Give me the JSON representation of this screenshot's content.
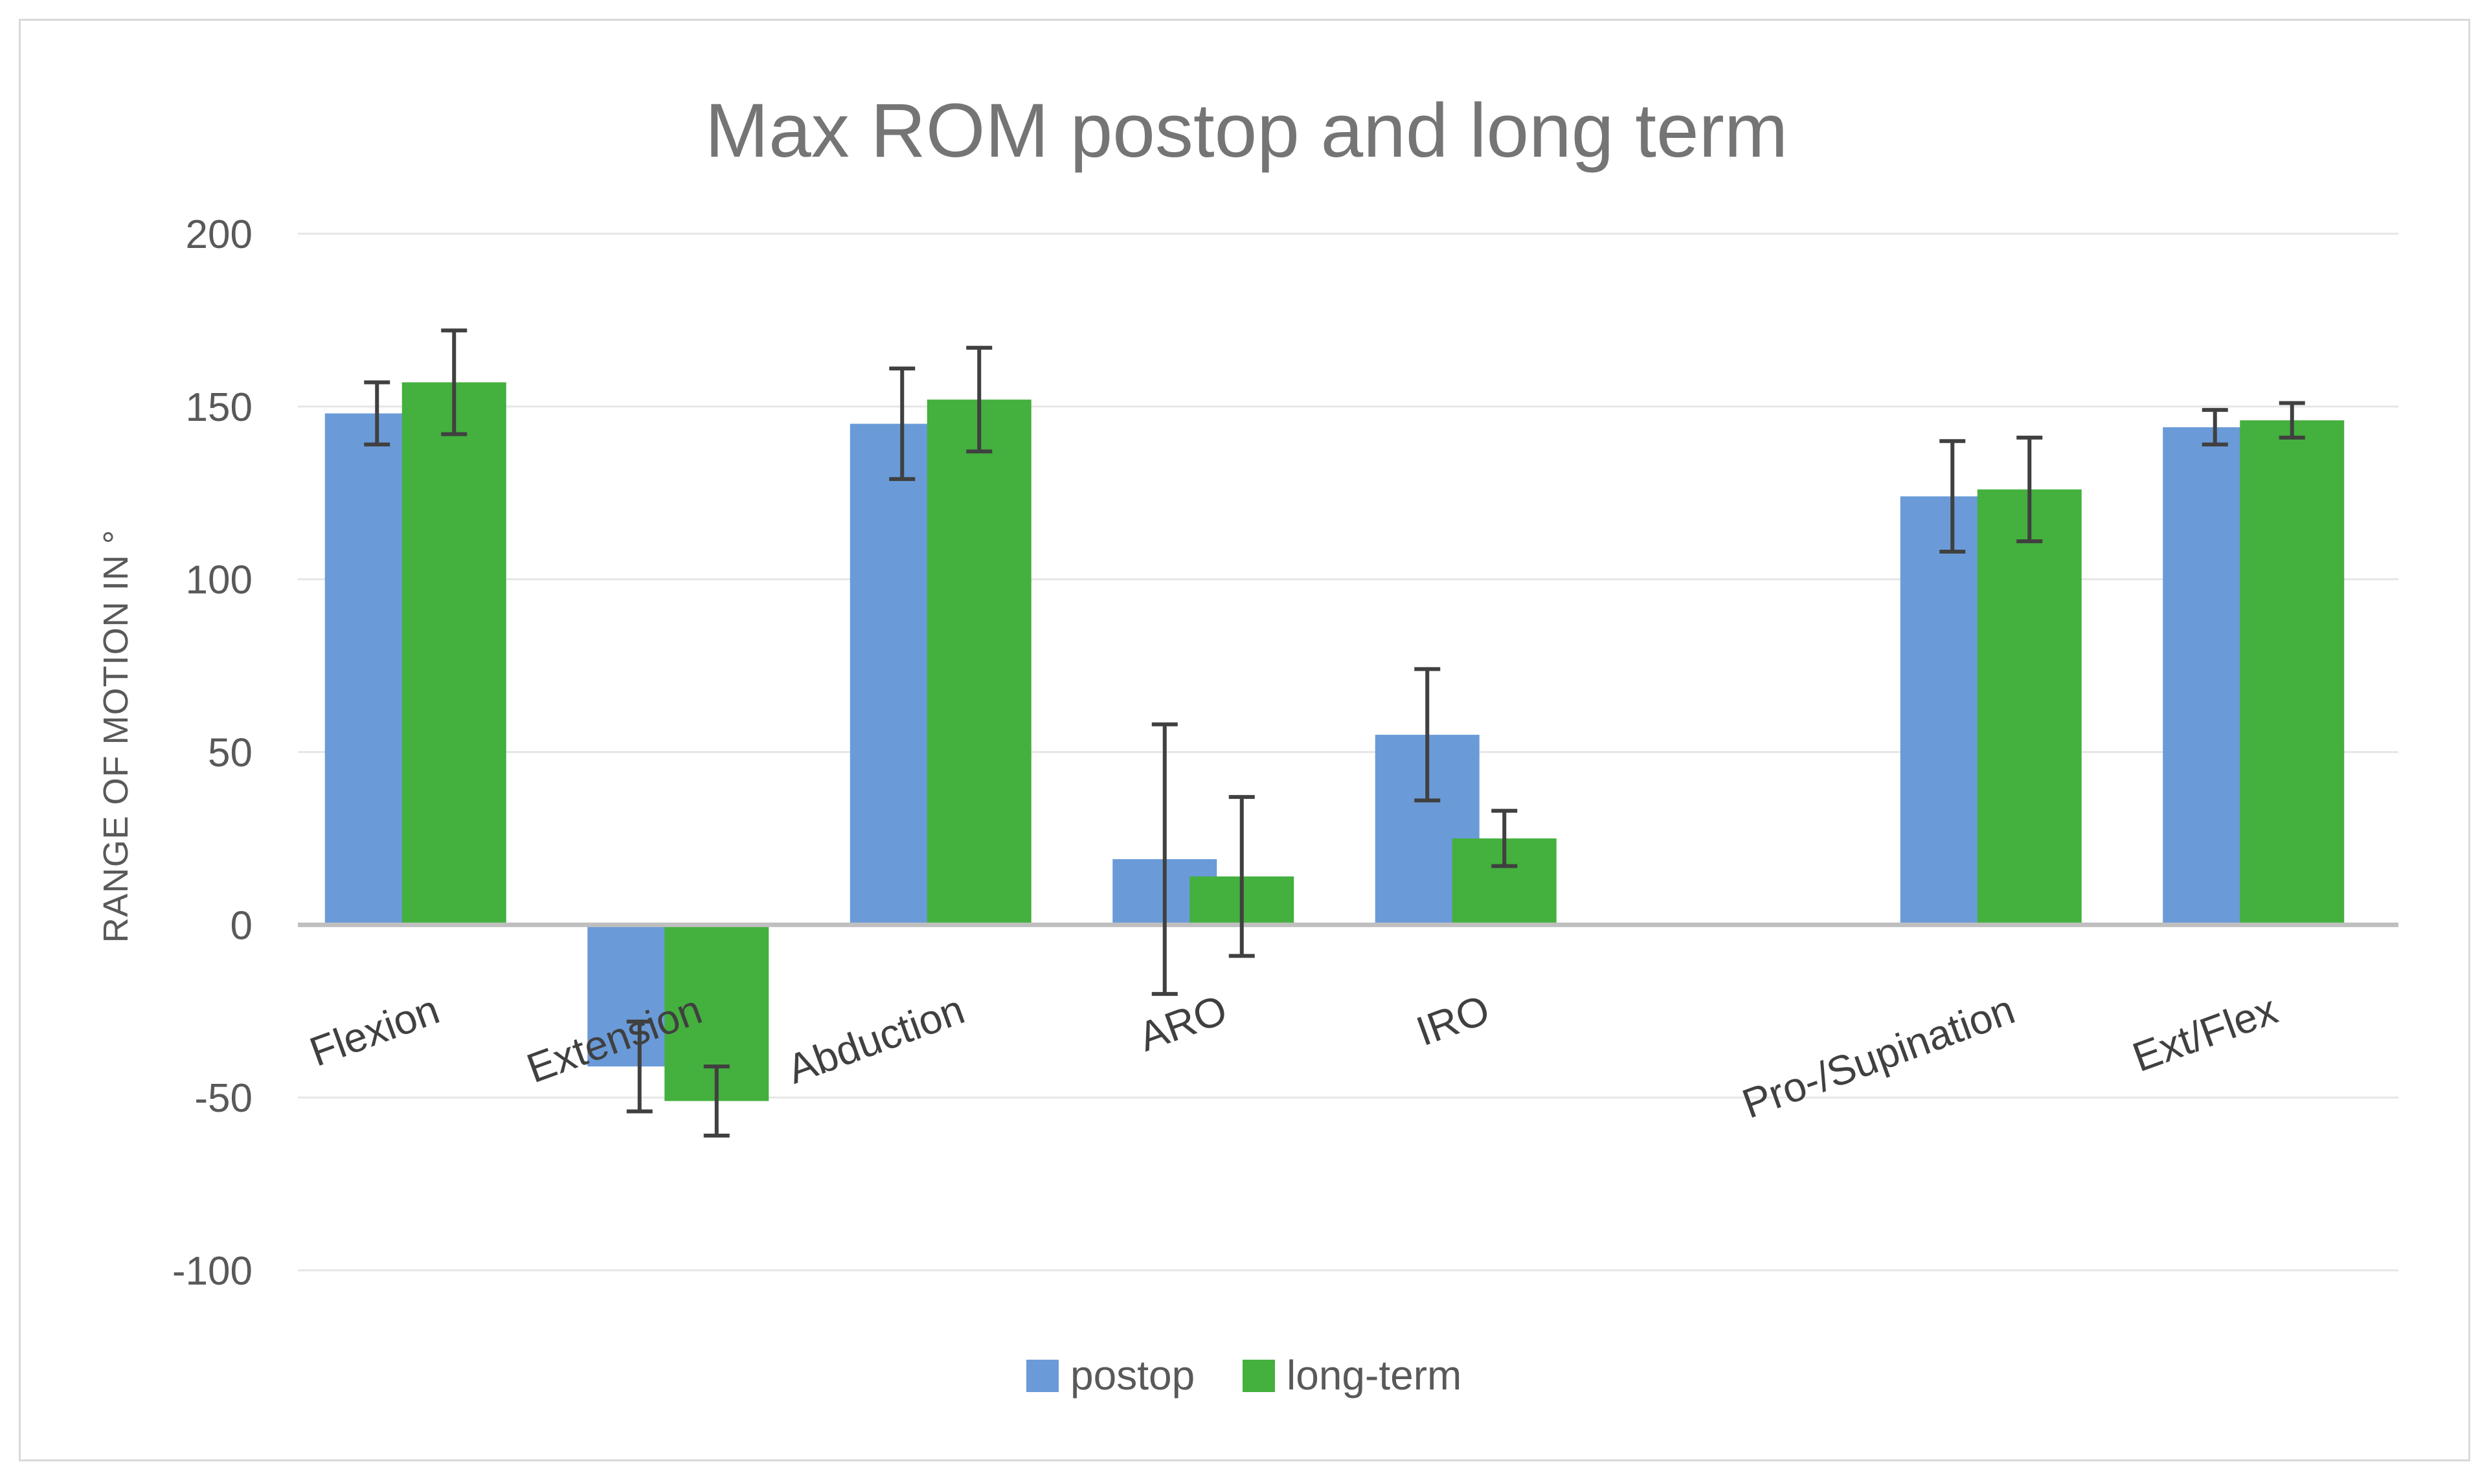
{
  "chart_data": {
    "type": "bar",
    "title": "Max ROM postop and long term",
    "xlabel": "",
    "ylabel": "RANGE OF MOTION IN °",
    "ylim": [
      -100,
      200
    ],
    "yticks": [
      200,
      150,
      100,
      50,
      0,
      -50,
      -100
    ],
    "ytick_labels": [
      "200",
      "150",
      "100",
      "50",
      "0",
      "-50",
      "-100"
    ],
    "grid": true,
    "legend_position": "bottom",
    "categories": [
      "Flexion",
      "Extension",
      "Abduction",
      "ARO",
      "IRO",
      "",
      "Pro-/Supination",
      "Ext/Flex"
    ],
    "series": [
      {
        "name": "postop",
        "color": "#6a9bd8",
        "values": [
          148,
          -41,
          145,
          19,
          55,
          null,
          124,
          144
        ],
        "error": [
          9,
          13,
          16,
          39,
          19,
          null,
          16,
          5
        ]
      },
      {
        "name": "long-term",
        "color": "#44b03e",
        "values": [
          157,
          -51,
          152,
          14,
          25,
          null,
          126,
          146
        ],
        "error": [
          15,
          10,
          15,
          23,
          8,
          null,
          15,
          5
        ]
      }
    ]
  }
}
